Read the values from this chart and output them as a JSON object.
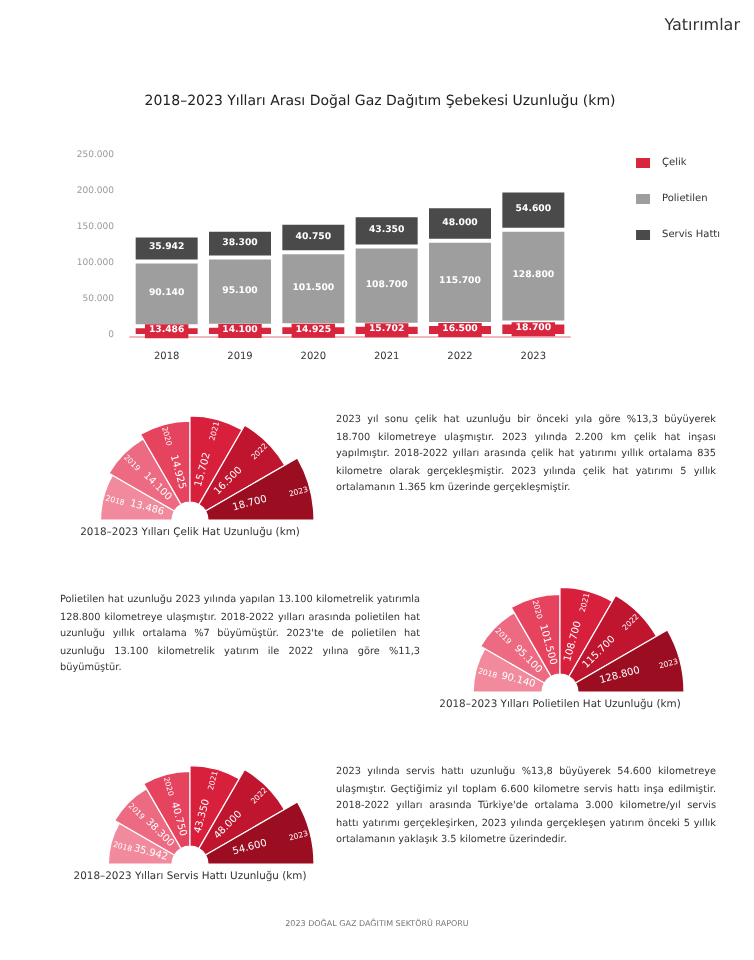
{
  "chart_data": [
    {
      "type": "other",
      "annotations": [
        "Yatırımlar"
      ]
    },
    {
      "type": "bar",
      "title": "2018–2023 Yılları Arası Doğal Gaz Dağıtım Şebekesi Uzunluğu (km)",
      "categories": [
        "2018",
        "2019",
        "2020",
        "2021",
        "2022",
        "2023"
      ],
      "stacked": true,
      "legend": "top right",
      "ylim": [
        0,
        250000
      ],
      "yticks": [
        0,
        {
          "value": 50000,
          "label": "50.000"
        },
        {
          "value": 100000,
          "label": "100.000"
        },
        {
          "value": 150000,
          "label": "150.000"
        },
        {
          "value": 200000,
          "label": "200.000"
        },
        {
          "value": 250000,
          "label": "250.000"
        }
      ],
      "series": [
        {
          "name": "Çelik",
          "color": "#d7263d",
          "values": [
            13486,
            14100,
            14925,
            15702,
            16500,
            18700
          ],
          "value_labels": [
            "13.486",
            "14.100",
            "14.925",
            "15.702",
            "16.500",
            "18.700"
          ]
        },
        {
          "name": "Polietilen",
          "color": "#9e9e9e",
          "values": [
            90140,
            95100,
            101500,
            108700,
            115700,
            128800
          ],
          "value_labels": [
            "90.140",
            "95.100",
            "101.500",
            "108.700",
            "115.700",
            "128.800"
          ]
        },
        {
          "name": "Servis Hattı",
          "color": "#4a4a4a",
          "values": [
            35942,
            38300,
            40750,
            43350,
            48000,
            54600
          ],
          "value_labels": [
            "35.942",
            "38.300",
            "40.750",
            "43.350",
            "48.000",
            "54.600"
          ]
        }
      ]
    },
    {
      "type": "other",
      "title": "2018–2023 Yılları Çelik Hat Uzunluğu (km)",
      "categories": [
        "2018",
        "2019",
        "2020",
        "2021",
        "2022",
        "2023"
      ],
      "values": [
        13486,
        14100,
        14925,
        15702,
        16500,
        18700
      ],
      "value_labels": [
        "13.486",
        "14.100",
        "14.925",
        "15.702",
        "16.500",
        "18.700"
      ],
      "colors": [
        "#f08a9c",
        "#ec6a82",
        "#e6435f",
        "#d8203d",
        "#bf152f",
        "#9b0e22"
      ]
    },
    {
      "type": "other",
      "annotations": [
        "2023 yıl sonu çelik hat uzunluğu bir önceki yıla göre %13,3 büyüyerek 18.700 kilometreye ulaşmıştır. 2023 yılında 2.200 km çelik hat inşası yapılmıştır. 2018-2022 yılları arasında çelik hat yatırımı yıllık ortalama 835 kilometre olarak gerçekleşmiştir. 2023 yılında çelik hat yatırımı 5 yıllık ortalamanın 1.365 km üzerinde gerçekleşmiştir."
      ]
    },
    {
      "type": "other",
      "annotations": [
        "Polietilen hat uzunluğu 2023 yılında yapılan 13.100 kilometrelik yatırımla 128.800 kilometreye ulaşmıştır. 2018-2022 yılları arasında polietilen hat uzunluğu yıllık ortalama %7 büyümüştür. 2023'te de polietilen hat uzunluğu 13.100 kilometrelik yatırım ile 2022 yılına göre %11,3 büyümüştür."
      ]
    },
    {
      "type": "other",
      "title": "2018–2023 Yılları Polietilen Hat Uzunluğu (km)",
      "categories": [
        "2018",
        "2019",
        "2020",
        "2021",
        "2022",
        "2023"
      ],
      "values": [
        90140,
        95100,
        101500,
        108700,
        115700,
        128800
      ],
      "value_labels": [
        "90.140",
        "95.100",
        "101.500",
        "108.700",
        "115.700",
        "128.800"
      ],
      "colors": [
        "#f08a9c",
        "#ec6a82",
        "#e6435f",
        "#d8203d",
        "#bf152f",
        "#9b0e22"
      ]
    },
    {
      "type": "other",
      "title": "2018–2023 Yılları Servis Hattı Uzunluğu (km)",
      "categories": [
        "2018",
        "2019",
        "2020",
        "2021",
        "2022",
        "2023"
      ],
      "values": [
        35942,
        38300,
        40750,
        43350,
        48000,
        54600
      ],
      "value_labels": [
        "35.942",
        "38.300",
        "40.750",
        "43.350",
        "48.000",
        "54.600"
      ],
      "colors": [
        "#f08a9c",
        "#ec6a82",
        "#e6435f",
        "#d8203d",
        "#bf152f",
        "#9b0e22"
      ]
    },
    {
      "type": "other",
      "annotations": [
        "2023 yılında servis hattı uzunluğu %13,8 büyüyerek 54.600 kilometreye ulaşmıştır. Geçtiğimiz yıl toplam 6.600 kilometre servis hattı inşa edilmiştir. 2018-2022 yılları arasında Türkiye'de ortalama 3.000 kilometre/yıl servis hattı yatırımı gerçekleşirken, 2023 yılında gerçekleşen yatırım önceki 5 yıllık ortalamanın yaklaşık 3.5 kilometre üzerindedir."
      ]
    },
    {
      "type": "other",
      "annotations": [
        "2023 DOĞAL GAZ DAĞITIM SEKTÖRÜ RAPORU"
      ]
    }
  ]
}
